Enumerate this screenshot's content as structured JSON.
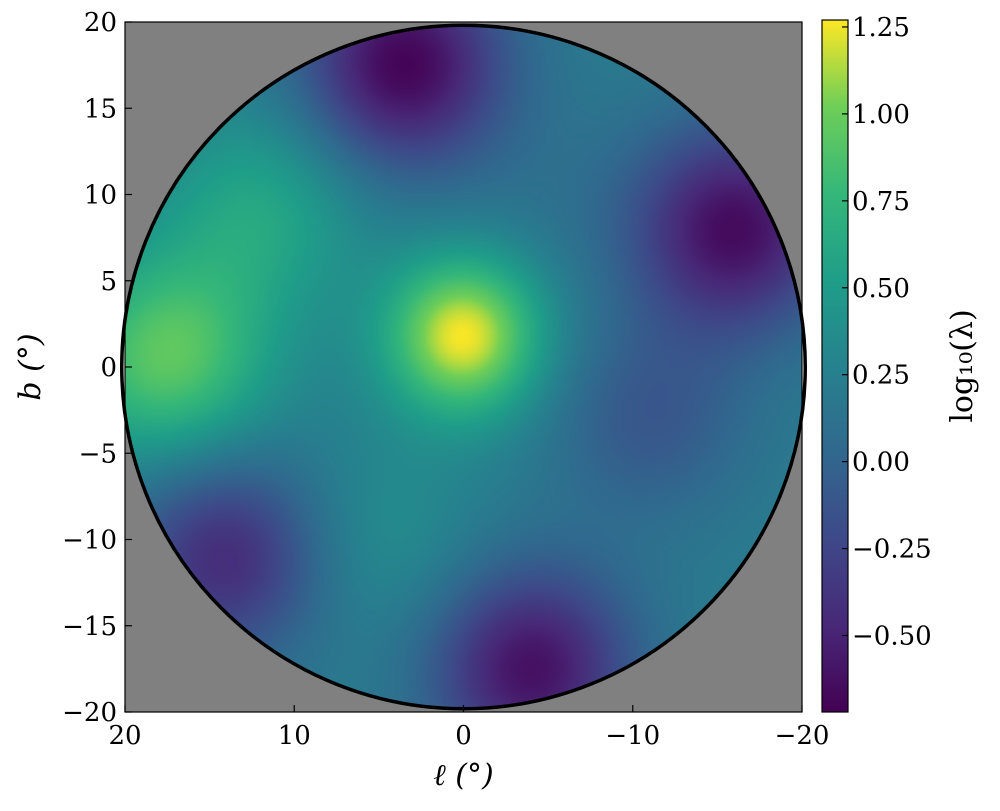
{
  "chart_data": {
    "type": "heatmap",
    "title": "",
    "xlabel": "ℓ (°)",
    "ylabel": "b (°)",
    "xlim": [
      20,
      -20
    ],
    "ylim": [
      -20,
      20
    ],
    "x_ticks": [
      20,
      10,
      0,
      -10,
      -20
    ],
    "y_ticks": [
      20,
      15,
      10,
      5,
      0,
      -5,
      -10,
      -15,
      -20
    ],
    "x_tick_labels": [
      "20",
      "10",
      "0",
      "−10",
      "−20"
    ],
    "y_tick_labels": [
      "20",
      "15",
      "10",
      "5",
      "0",
      "−5",
      "−10",
      "−15",
      "−20"
    ],
    "region": "disc of radius 20° centered at (0, 0)",
    "colormap": "viridis",
    "background_color": "#808080",
    "colorbar": {
      "label": "log₁₀(λ)",
      "range": [
        -0.72,
        1.27
      ],
      "ticks": [
        1.25,
        1.0,
        0.75,
        0.5,
        0.25,
        0.0,
        -0.25,
        -0.5
      ],
      "tick_labels": [
        "1.25",
        "1.00",
        "0.75",
        "0.50",
        "0.25",
        "0.00",
        "−0.25",
        "−0.50"
      ]
    },
    "features": [
      {
        "l": 0,
        "b": 1.8,
        "value": 1.27,
        "description": "bright peak near center"
      },
      {
        "l": 17.5,
        "b": 0.5,
        "value": 0.95
      },
      {
        "l": 12,
        "b": 9,
        "value": 0.6
      },
      {
        "l": 3.5,
        "b": 17.5,
        "value": -0.7
      },
      {
        "l": -16,
        "b": 8,
        "value": -0.65
      },
      {
        "l": -4,
        "b": -17.5,
        "value": -0.62
      },
      {
        "l": 14,
        "b": -11,
        "value": -0.45
      },
      {
        "l": -11,
        "b": -3,
        "value": -0.1
      },
      {
        "l": 5,
        "b": -10,
        "value": 0.4
      },
      {
        "l": -6,
        "b": 10,
        "value": 0.15
      }
    ]
  }
}
